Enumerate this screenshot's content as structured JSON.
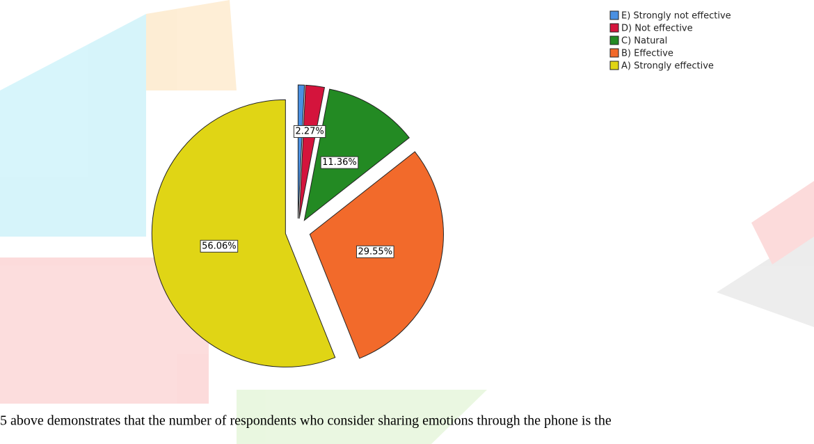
{
  "chart_data": {
    "type": "pie",
    "categories": [
      "E) Strongly not effective",
      "D) Not effective",
      "C) Natural",
      "B) Effective",
      "A) Strongly effective"
    ],
    "values": [
      0.76,
      2.27,
      11.36,
      29.55,
      56.06
    ],
    "value_labels": [
      null,
      "2.27%",
      "11.36%",
      "29.55%",
      "56.06%"
    ],
    "colors": [
      "#4a90e2",
      "#d4143c",
      "#238a23",
      "#f26a2b",
      "#e0d515"
    ],
    "legend": "top-right"
  },
  "text": "5 above demonstrates that the number of respondents who consider sharing emotions through the phone is the"
}
